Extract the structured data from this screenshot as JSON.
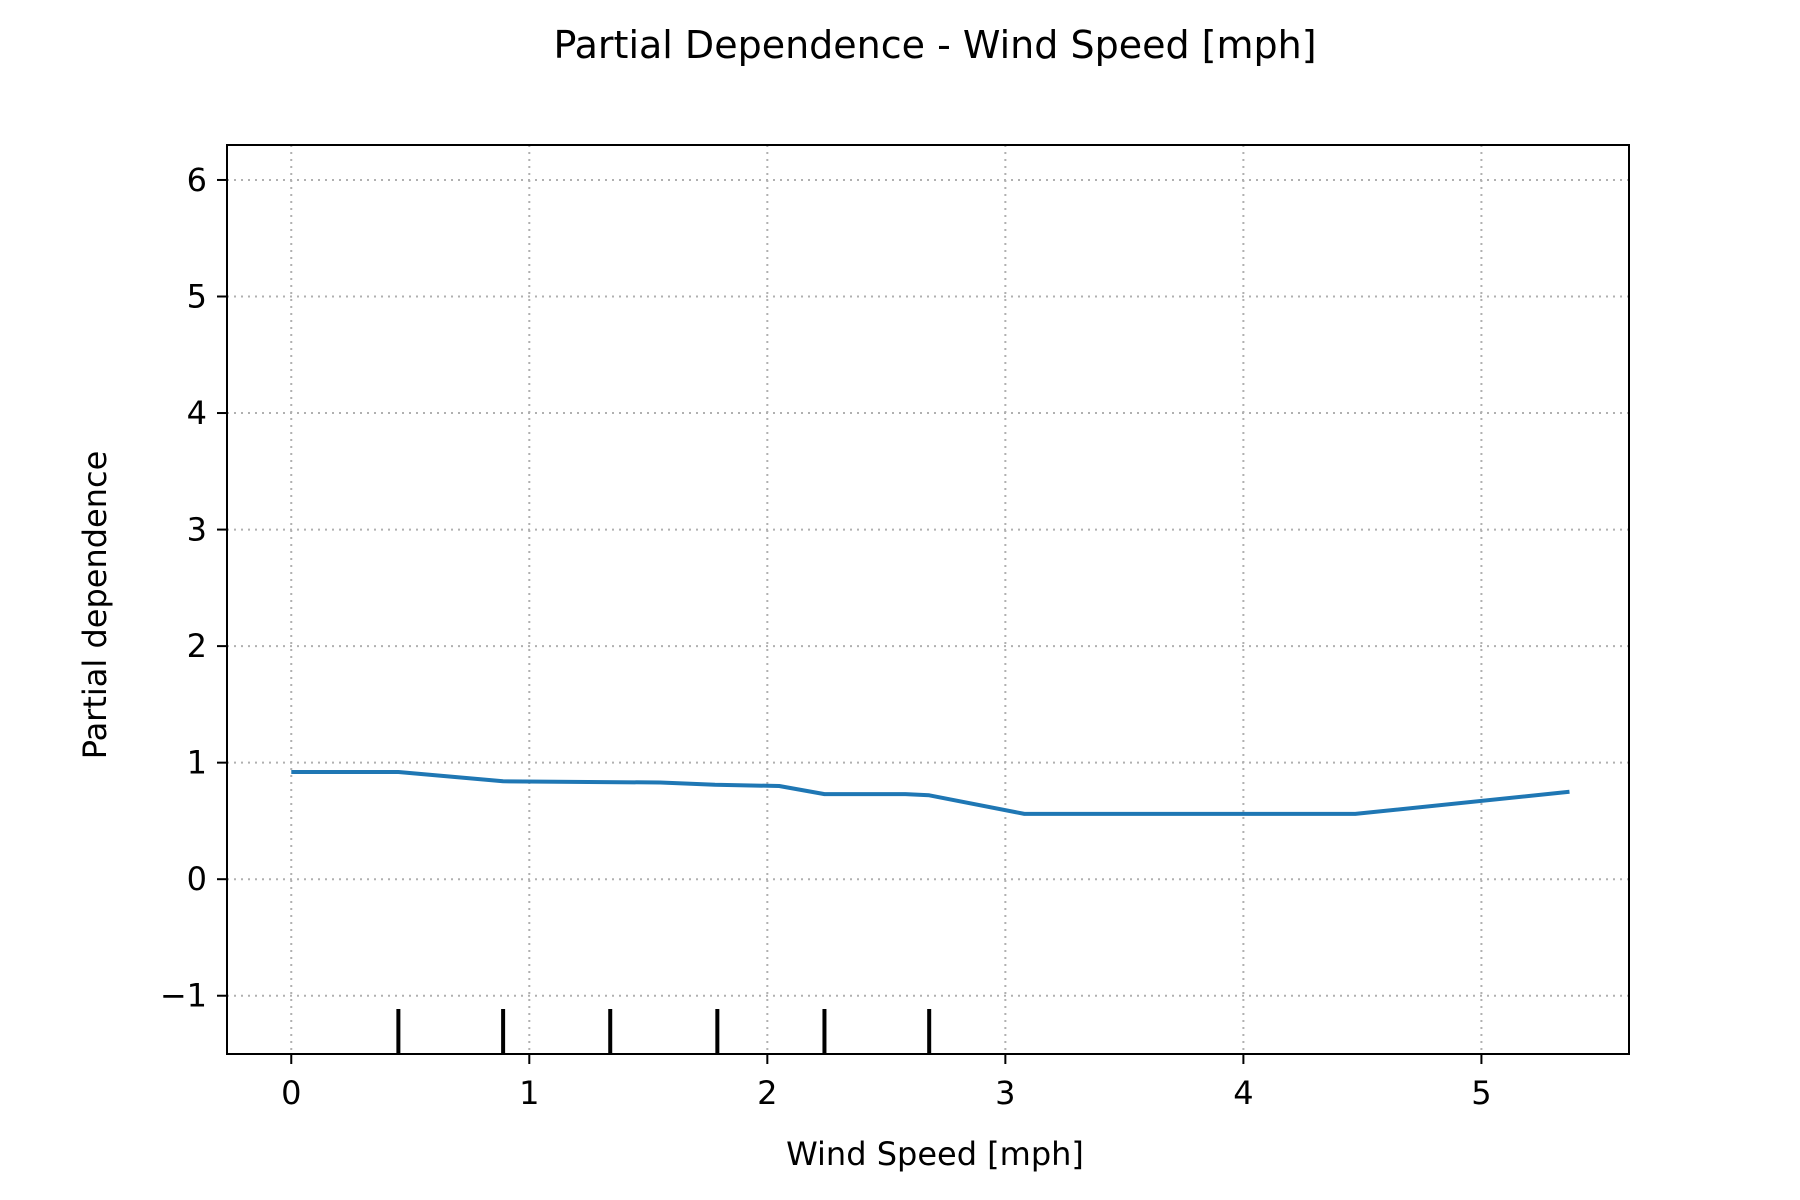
{
  "chart_data": {
    "type": "line",
    "title": "Partial Dependence - Wind Speed [mph]",
    "xlabel": "Wind Speed [mph]",
    "ylabel": "Partial dependence",
    "xlim": [
      -0.27,
      5.62
    ],
    "ylim": [
      -1.5,
      6.3
    ],
    "xticks": [
      0,
      1,
      2,
      3,
      4,
      5
    ],
    "xtick_labels": [
      "0",
      "1",
      "2",
      "3",
      "4",
      "5"
    ],
    "yticks": [
      -1,
      0,
      1,
      2,
      3,
      4,
      5,
      6
    ],
    "ytick_labels": [
      "−1",
      "0",
      "1",
      "2",
      "3",
      "4",
      "5",
      "6"
    ],
    "grid": true,
    "series": [
      {
        "color": "#1f77b4",
        "x": [
          0,
          0.45,
          0.89,
          1.55,
          1.78,
          2.05,
          2.24,
          2.58,
          2.68,
          3.08,
          4.47,
          5.37
        ],
        "y": [
          0.92,
          0.92,
          0.84,
          0.83,
          0.81,
          0.8,
          0.73,
          0.73,
          0.72,
          0.56,
          0.56,
          0.75
        ]
      }
    ],
    "rug": {
      "color": "#000000",
      "x": [
        0.45,
        0.89,
        1.34,
        1.79,
        2.24,
        2.68
      ]
    }
  }
}
